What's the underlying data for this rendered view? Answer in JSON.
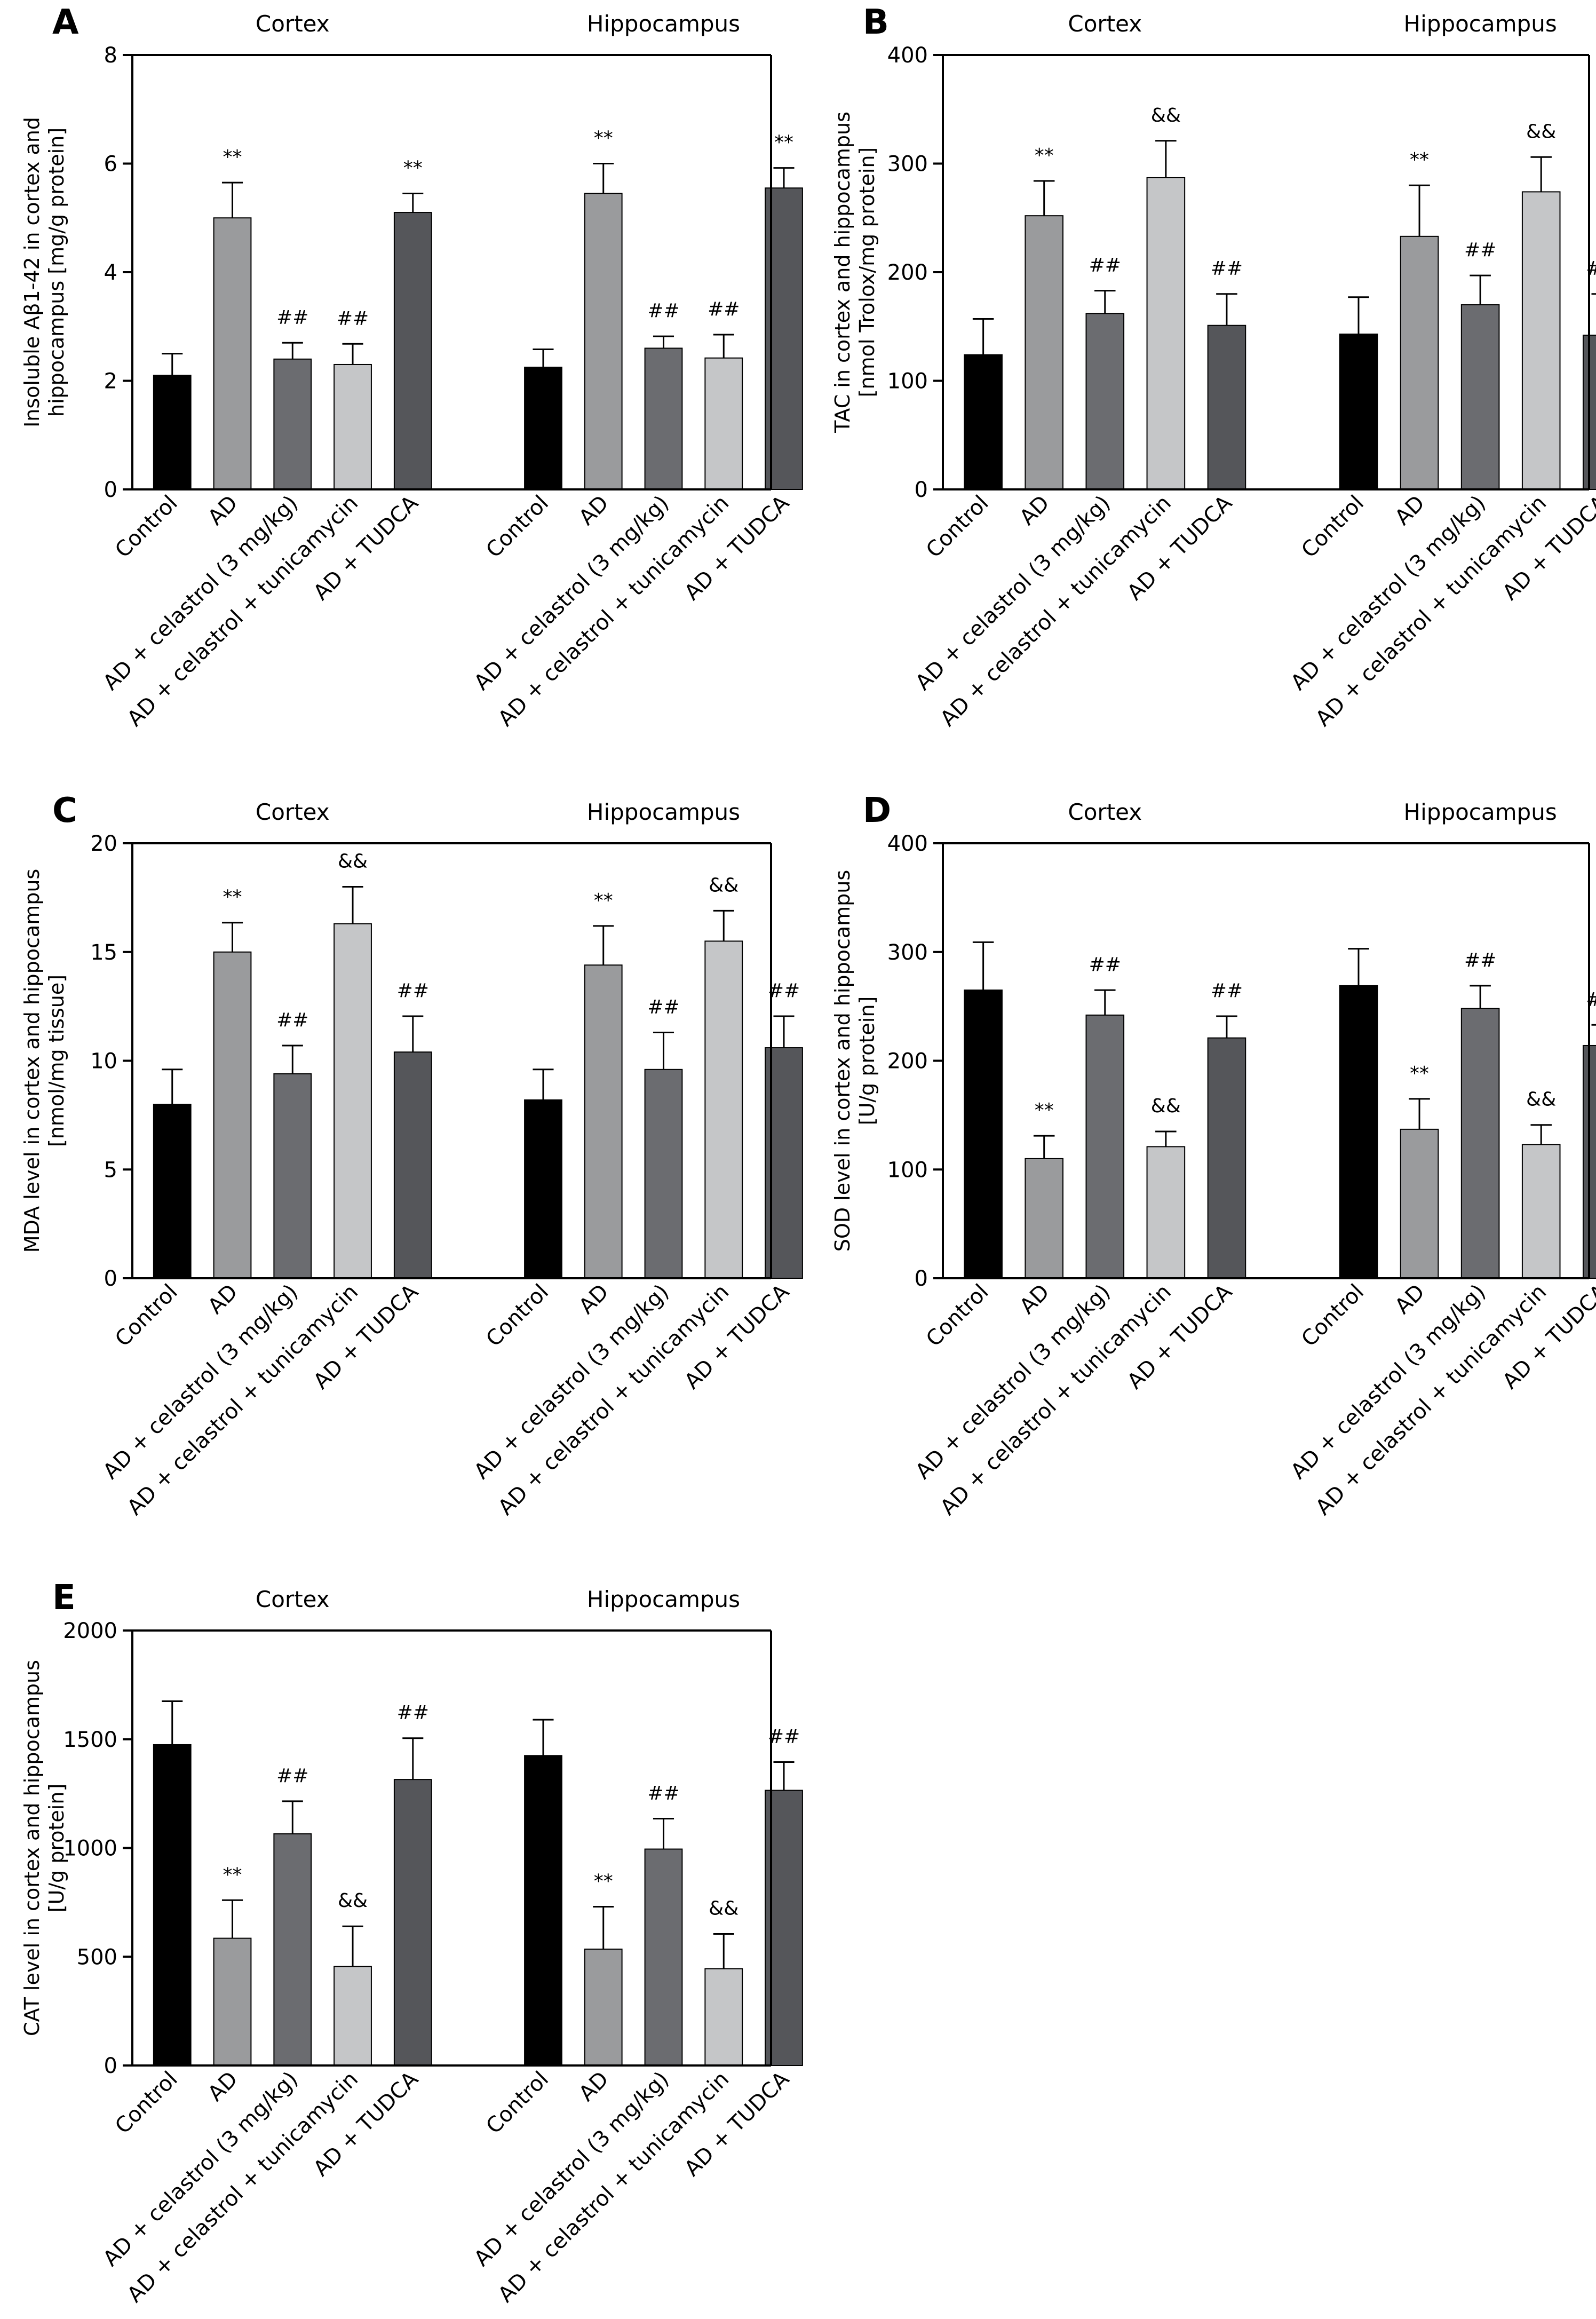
{
  "figure": {
    "background": "#ffffff"
  },
  "bar_colors": [
    "#000000",
    "#9a9b9d",
    "#6b6c70",
    "#c5c6c8",
    "#55565a"
  ],
  "chart_data": [
    {
      "type": "bar",
      "panel": "A",
      "ylabel": [
        "Insoluble Aβ1-42 in cortex and",
        "hippocampus [mg/g protein]"
      ],
      "ylim": [
        0,
        8
      ],
      "yticks": [
        0,
        2,
        4,
        6,
        8
      ],
      "groups": [
        "Cortex",
        "Hippocampus"
      ],
      "categories": [
        "Control",
        "AD",
        "AD + celastrol (3 mg/kg)",
        "AD + celastrol + tunicamycin",
        "AD + TUDCA"
      ],
      "series": [
        {
          "group": "Cortex",
          "values": [
            2.1,
            5.0,
            2.4,
            2.3,
            5.1
          ],
          "errors": [
            0.4,
            0.65,
            0.3,
            0.38,
            0.35
          ],
          "marks": [
            "",
            "**",
            "##",
            "##",
            "**"
          ]
        },
        {
          "group": "Hippocampus",
          "values": [
            2.25,
            5.45,
            2.6,
            2.42,
            5.55
          ],
          "errors": [
            0.33,
            0.55,
            0.22,
            0.43,
            0.37
          ],
          "marks": [
            "",
            "**",
            "##",
            "##",
            "**"
          ]
        }
      ]
    },
    {
      "type": "bar",
      "panel": "B",
      "ylabel": [
        "TAC in cortex and hippocampus",
        "[nmol Trolox/mg protein]"
      ],
      "ylim": [
        0,
        400
      ],
      "yticks": [
        0,
        100,
        200,
        300,
        400
      ],
      "groups": [
        "Cortex",
        "Hippocampus"
      ],
      "categories": [
        "Control",
        "AD",
        "AD + celastrol (3 mg/kg)",
        "AD + celastrol + tunicamycin",
        "AD + TUDCA"
      ],
      "series": [
        {
          "group": "Cortex",
          "values": [
            124,
            252,
            162,
            287,
            151
          ],
          "errors": [
            33,
            32,
            21,
            34,
            29
          ],
          "marks": [
            "",
            "**",
            "##",
            "&&",
            "##"
          ]
        },
        {
          "group": "Hippocampus",
          "values": [
            143,
            233,
            170,
            274,
            142
          ],
          "errors": [
            34,
            47,
            27,
            32,
            38
          ],
          "marks": [
            "",
            "**",
            "##",
            "&&",
            "##"
          ]
        }
      ]
    },
    {
      "type": "bar",
      "panel": "C",
      "ylabel": [
        "MDA level in cortex and hippocampus",
        "[nmol/mg tissue]"
      ],
      "ylim": [
        0,
        20
      ],
      "yticks": [
        0,
        5,
        10,
        15,
        20
      ],
      "groups": [
        "Cortex",
        "Hippocampus"
      ],
      "categories": [
        "Control",
        "AD",
        "AD + celastrol (3 mg/kg)",
        "AD + celastrol + tunicamycin",
        "AD + TUDCA"
      ],
      "series": [
        {
          "group": "Cortex",
          "values": [
            8.0,
            15.0,
            9.4,
            16.3,
            10.4
          ],
          "errors": [
            1.6,
            1.35,
            1.3,
            1.7,
            1.65
          ],
          "marks": [
            "",
            "**",
            "##",
            "&&",
            "##"
          ]
        },
        {
          "group": "Hippocampus",
          "values": [
            8.2,
            14.4,
            9.6,
            15.5,
            10.6
          ],
          "errors": [
            1.4,
            1.8,
            1.7,
            1.4,
            1.45
          ],
          "marks": [
            "",
            "**",
            "##",
            "&&",
            "##"
          ]
        }
      ]
    },
    {
      "type": "bar",
      "panel": "D",
      "ylabel": [
        "SOD level in cortex and hippocampus",
        "[U/g protein]"
      ],
      "ylim": [
        0,
        400
      ],
      "yticks": [
        0,
        100,
        200,
        300,
        400
      ],
      "groups": [
        "Cortex",
        "Hippocampus"
      ],
      "categories": [
        "Control",
        "AD",
        "AD + celastrol (3 mg/kg)",
        "AD + celastrol + tunicamycin",
        "AD + TUDCA"
      ],
      "series": [
        {
          "group": "Cortex",
          "values": [
            265,
            110,
            242,
            121,
            221
          ],
          "errors": [
            44,
            21,
            23,
            14,
            20
          ],
          "marks": [
            "",
            "**",
            "##",
            "&&",
            "##"
          ]
        },
        {
          "group": "Hippocampus",
          "values": [
            269,
            137,
            248,
            123,
            214
          ],
          "errors": [
            34,
            28,
            21,
            18,
            19
          ],
          "marks": [
            "",
            "**",
            "##",
            "&&",
            "##"
          ]
        }
      ]
    },
    {
      "type": "bar",
      "panel": "E",
      "ylabel": [
        "CAT level in cortex and hippocampus",
        "[U/g protein]"
      ],
      "ylim": [
        0,
        2000
      ],
      "yticks": [
        0,
        500,
        1000,
        1500,
        2000
      ],
      "groups": [
        "Cortex",
        "Hippocampus"
      ],
      "categories": [
        "Control",
        "AD",
        "AD + celastrol (3 mg/kg)",
        "AD + celastrol + tunicamycin",
        "AD + TUDCA"
      ],
      "series": [
        {
          "group": "Cortex",
          "values": [
            1475,
            585,
            1065,
            455,
            1315
          ],
          "errors": [
            200,
            175,
            150,
            185,
            190
          ],
          "marks": [
            "",
            "**",
            "##",
            "&&",
            "##"
          ]
        },
        {
          "group": "Hippocampus",
          "values": [
            1425,
            535,
            995,
            445,
            1265
          ],
          "errors": [
            165,
            195,
            140,
            160,
            130
          ],
          "marks": [
            "",
            "**",
            "##",
            "&&",
            "##"
          ]
        }
      ]
    }
  ]
}
